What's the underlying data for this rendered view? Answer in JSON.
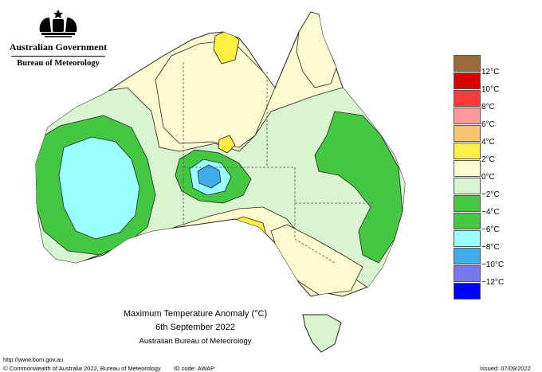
{
  "header": {
    "government": "Australian Government",
    "bureau": "Bureau of Meteorology"
  },
  "title": {
    "line1": "Maximum Temperature Anomaly (°C)",
    "line2": "6th September 2022",
    "line3": "Australian Bureau of Meteorology"
  },
  "legend": {
    "labels": [
      "12°C",
      "10°C",
      "8°C",
      "6°C",
      "4°C",
      "2°C",
      "0°C",
      "−2°C",
      "−4°C",
      "−6°C",
      "−8°C",
      "−10°C",
      "−12°C"
    ],
    "colors": [
      "#9c6a3a",
      "#d80000",
      "#ff3a3a",
      "#ff9999",
      "#f8c271",
      "#ffee44",
      "#fdfad0",
      "#d8f5d0",
      "#44c844",
      "#99ffff",
      "#44aaee",
      "#7777ee",
      "#0000ff"
    ]
  },
  "map_colors": {
    "ocean": "#ffffff",
    "plus0": "#fdfad0",
    "plus2": "#ffee44",
    "minus0": "#d8f5d0",
    "minus2": "#44c844",
    "minus4": "#44c844",
    "minus6": "#99ffff",
    "minus8": "#44aaee"
  },
  "footer": {
    "url": "http://www.bom.gov.au",
    "copyright": "© Commonwealth of Australia 2022, Bureau of Meteorology",
    "id_code": "ID code: AWAP",
    "issued": "Issued: 07/09/2022"
  }
}
